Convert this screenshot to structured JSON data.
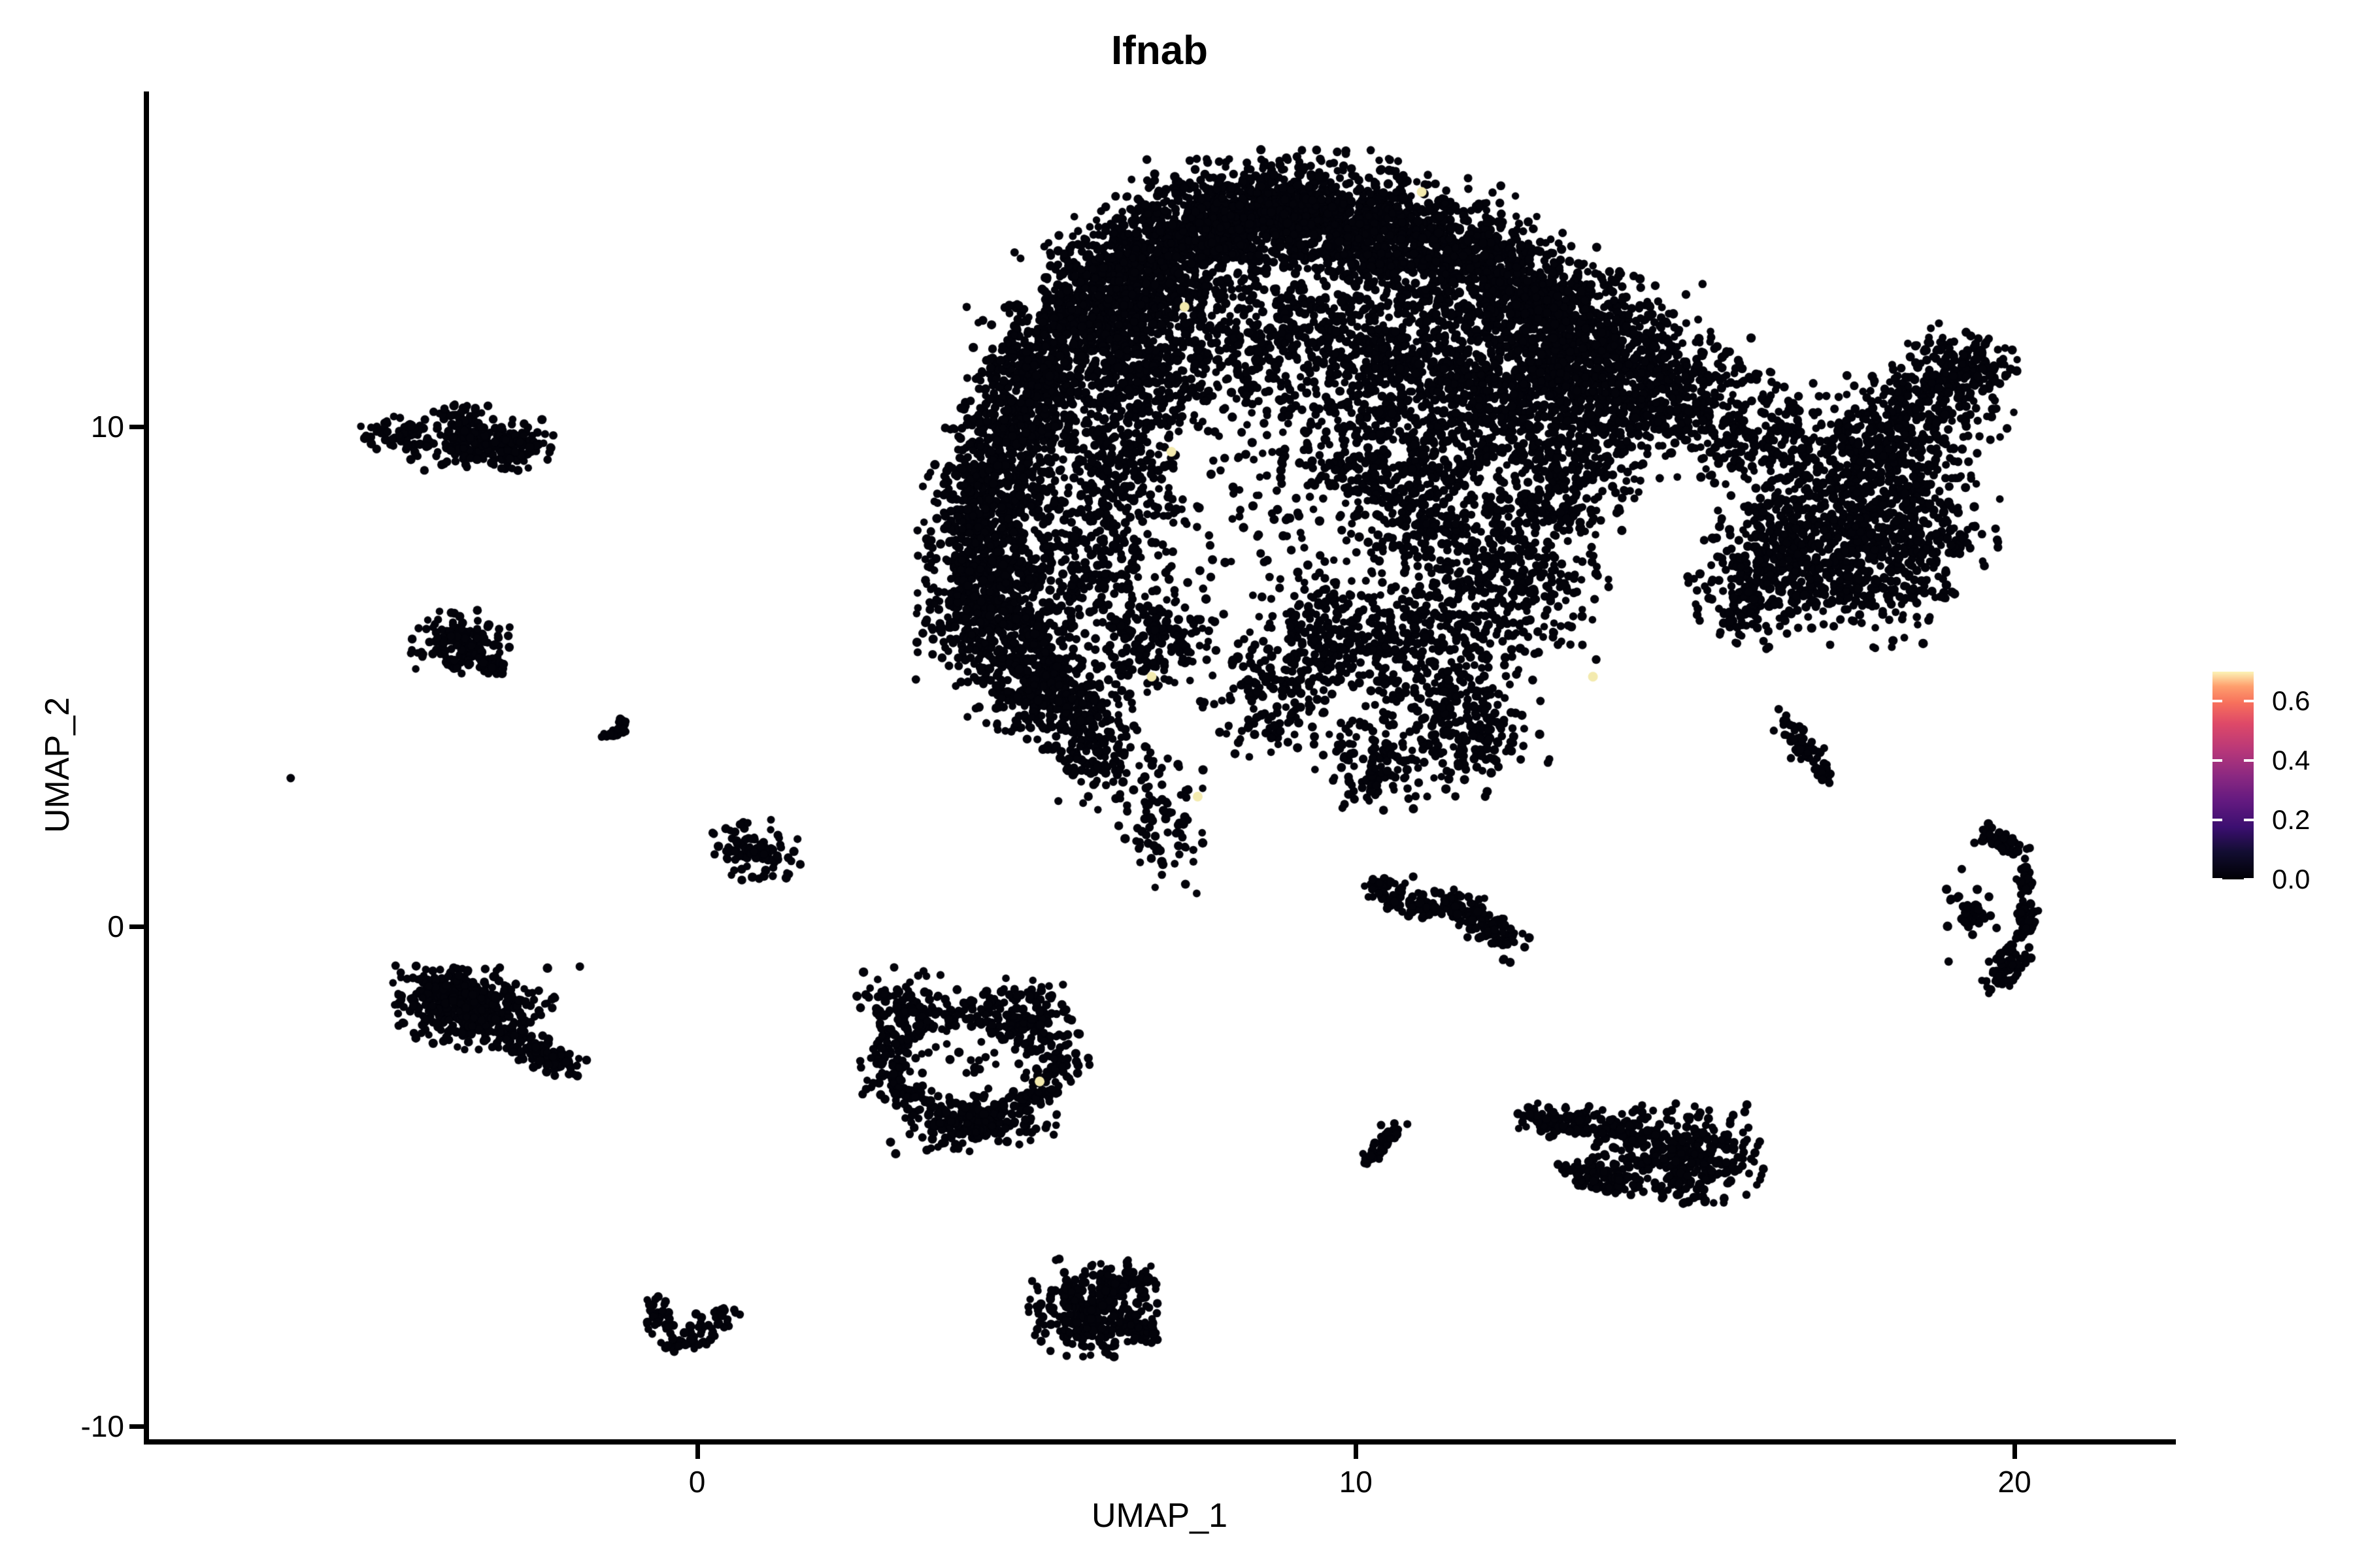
{
  "title": "Ifnab",
  "axes": {
    "x": {
      "label": "UMAP_1",
      "ticks": [
        "0",
        "10",
        "20"
      ],
      "tick_values": [
        0,
        10,
        20
      ],
      "range": [
        -8.4,
        22.45
      ]
    },
    "y": {
      "label": "UMAP_2",
      "ticks": [
        "10",
        "0",
        "-10"
      ],
      "tick_values": [
        10,
        0,
        -10
      ],
      "range": [
        -10.26,
        16.71
      ]
    }
  },
  "colorbar": {
    "tick_labels": [
      "0.6",
      "0.4",
      "0.2",
      "0.0"
    ],
    "tick_values": [
      0.6,
      0.4,
      0.2,
      0.0
    ],
    "vmax": 0.7,
    "stops": [
      {
        "at": 0.0,
        "color": "#000004"
      },
      {
        "at": 0.13,
        "color": "#120d31"
      },
      {
        "at": 0.25,
        "color": "#3b0f70"
      },
      {
        "at": 0.38,
        "color": "#641a80"
      },
      {
        "at": 0.5,
        "color": "#8c2981"
      },
      {
        "at": 0.62,
        "color": "#b73779"
      },
      {
        "at": 0.75,
        "color": "#de4968"
      },
      {
        "at": 0.85,
        "color": "#f7705c"
      },
      {
        "at": 0.93,
        "color": "#fe9f6d"
      },
      {
        "at": 1.0,
        "color": "#fcf4b6"
      }
    ]
  },
  "colors": {
    "dot": "#03030a",
    "highlight": "#f3eaae",
    "axis": "#000000",
    "background": "#ffffff"
  },
  "chart_data": {
    "type": "scatter",
    "title": "Ifnab",
    "xlabel": "UMAP_1",
    "ylabel": "UMAP_2",
    "xlim": [
      -8.4,
      22.45
    ],
    "ylim": [
      -10.26,
      16.71
    ],
    "grid": false,
    "legend_position": "right",
    "point_radius_px": 6.5,
    "gaussian_clusters": [
      [
        6.35,
        12.9,
        0.45,
        0.55,
        260
      ],
      [
        7.0,
        13.4,
        0.55,
        0.65,
        480
      ],
      [
        8.0,
        14.05,
        0.6,
        0.55,
        500
      ],
      [
        9.0,
        14.35,
        0.6,
        0.5,
        460
      ],
      [
        10.0,
        14.05,
        0.6,
        0.55,
        450
      ],
      [
        11.0,
        13.65,
        0.6,
        0.6,
        420
      ],
      [
        12.0,
        13.05,
        0.55,
        0.6,
        380
      ],
      [
        12.9,
        12.35,
        0.5,
        0.55,
        300
      ],
      [
        5.85,
        12.2,
        0.5,
        0.6,
        340
      ],
      [
        5.15,
        11.0,
        0.45,
        0.6,
        320
      ],
      [
        4.8,
        9.8,
        0.45,
        0.6,
        300
      ],
      [
        4.5,
        8.6,
        0.45,
        0.6,
        300
      ],
      [
        4.4,
        7.4,
        0.45,
        0.6,
        300
      ],
      [
        4.5,
        6.2,
        0.5,
        0.55,
        320
      ],
      [
        5.0,
        5.15,
        0.5,
        0.5,
        280
      ],
      [
        5.6,
        4.3,
        0.45,
        0.45,
        210
      ],
      [
        6.1,
        3.4,
        0.35,
        0.45,
        120
      ],
      [
        7.1,
        2.1,
        0.3,
        0.6,
        80
      ],
      [
        6.5,
        10.9,
        0.5,
        0.7,
        260
      ],
      [
        6.3,
        9.1,
        0.45,
        0.75,
        210
      ],
      [
        6.1,
        7.1,
        0.5,
        0.75,
        230
      ],
      [
        7.0,
        5.6,
        0.5,
        0.5,
        180
      ],
      [
        7.6,
        11.6,
        0.75,
        0.75,
        260
      ],
      [
        9.3,
        11.9,
        0.75,
        0.65,
        300
      ],
      [
        8.6,
        9.3,
        1.5,
        1.5,
        220
      ],
      [
        10.6,
        11.3,
        0.7,
        0.75,
        340
      ],
      [
        11.7,
        10.6,
        0.6,
        0.75,
        320
      ],
      [
        10.3,
        9.3,
        0.6,
        0.65,
        240
      ],
      [
        11.3,
        8.3,
        0.6,
        0.65,
        270
      ],
      [
        12.6,
        10.9,
        0.6,
        0.85,
        320
      ],
      [
        13.6,
        11.7,
        0.55,
        0.65,
        300
      ],
      [
        13.8,
        10.2,
        0.5,
        0.7,
        250
      ],
      [
        13.0,
        8.8,
        0.55,
        0.75,
        270
      ],
      [
        12.3,
        6.9,
        0.65,
        0.65,
        290
      ],
      [
        11.0,
        5.6,
        0.65,
        0.65,
        290
      ],
      [
        9.6,
        5.9,
        0.55,
        0.6,
        210
      ],
      [
        8.8,
        4.7,
        0.5,
        0.55,
        170
      ],
      [
        11.7,
        3.9,
        0.55,
        0.55,
        220
      ],
      [
        10.3,
        3.3,
        0.4,
        0.45,
        130
      ],
      [
        14.5,
        11.1,
        0.5,
        0.8,
        250
      ],
      [
        15.3,
        10.4,
        0.45,
        0.6,
        180
      ],
      [
        16.2,
        9.9,
        0.5,
        0.5,
        150
      ],
      [
        19.3,
        11.2,
        0.35,
        0.4,
        140
      ],
      [
        18.7,
        10.35,
        0.5,
        0.6,
        220
      ],
      [
        18.0,
        9.35,
        0.6,
        0.7,
        280
      ],
      [
        17.2,
        8.4,
        0.6,
        0.7,
        280
      ],
      [
        16.4,
        7.6,
        0.55,
        0.6,
        240
      ],
      [
        17.6,
        7.0,
        0.6,
        0.6,
        260
      ],
      [
        18.6,
        8.0,
        0.5,
        0.6,
        220
      ],
      [
        16.0,
        6.6,
        0.4,
        0.5,
        130
      ],
      [
        -3.15,
        9.65,
        0.5,
        0.22,
        230
      ],
      [
        -3.55,
        10.15,
        0.18,
        0.15,
        45
      ],
      [
        -4.45,
        9.85,
        0.28,
        0.15,
        70
      ],
      [
        -3.6,
        5.72,
        0.32,
        0.28,
        130
      ],
      [
        0.95,
        1.55,
        0.3,
        0.27,
        95
      ],
      [
        -3.35,
        -1.65,
        0.5,
        0.35,
        330
      ],
      [
        -3.9,
        -1.35,
        0.3,
        0.25,
        120
      ],
      [
        14.9,
        -4.55,
        0.55,
        0.42,
        380
      ],
      [
        6.0,
        -7.65,
        0.42,
        0.42,
        300
      ],
      [
        6.55,
        -7.05,
        0.18,
        0.15,
        50
      ],
      [
        6.75,
        -8.05,
        0.15,
        0.12,
        35
      ],
      [
        4.2,
        -3.95,
        0.55,
        0.25,
        150
      ],
      [
        3.05,
        -1.6,
        0.3,
        0.35,
        90
      ],
      [
        5.0,
        -1.75,
        0.35,
        0.3,
        100
      ],
      [
        19.35,
        0.3,
        0.16,
        0.2,
        40
      ]
    ],
    "line_clusters": [
      {
        "pts": [
          [
            -1.35,
            3.75
          ],
          [
            -1.1,
            4.1
          ]
        ],
        "spread": 0.07,
        "n": 22
      },
      {
        "pts": [
          [
            -3.3,
            5.35
          ],
          [
            -2.95,
            5.12
          ]
        ],
        "spread": 0.09,
        "n": 40
      },
      {
        "pts": [
          [
            -2.9,
            -2.2
          ],
          [
            -1.95,
            -2.8
          ]
        ],
        "spread": 0.14,
        "n": 110
      },
      {
        "pts": [
          [
            10.35,
            0.8
          ],
          [
            10.9,
            0.35
          ],
          [
            11.5,
            0.5
          ],
          [
            12.0,
            0.0
          ],
          [
            12.3,
            -0.45
          ]
        ],
        "spread": 0.16,
        "n": 215
      },
      {
        "pts": [
          [
            10.15,
            -4.75
          ],
          [
            10.65,
            -3.95
          ]
        ],
        "spread": 0.09,
        "n": 40
      },
      {
        "pts": [
          [
            12.65,
            -3.8
          ],
          [
            14.2,
            -4.15
          ]
        ],
        "spread": 0.17,
        "n": 135
      },
      {
        "pts": [
          [
            13.25,
            -4.95
          ],
          [
            14.05,
            -5.15
          ]
        ],
        "spread": 0.13,
        "n": 80
      },
      {
        "pts": [
          [
            -0.68,
            -7.55
          ],
          [
            -0.32,
            -8.5
          ]
        ],
        "spread": 0.12,
        "n": 45
      },
      {
        "pts": [
          [
            -0.32,
            -8.5
          ],
          [
            0.5,
            -7.72
          ]
        ],
        "spread": 0.13,
        "n": 55
      },
      {
        "pts": [
          [
            16.5,
            4.05
          ],
          [
            17.15,
            3.0
          ]
        ],
        "spread": 0.1,
        "n": 70
      },
      {
        "pts": [
          [
            19.55,
            1.85
          ],
          [
            20.1,
            1.55
          ]
        ],
        "spread": 0.1,
        "n": 50
      },
      {
        "pts": [
          [
            20.15,
            1.35
          ],
          [
            20.18,
            -0.25
          ]
        ],
        "spread": 0.08,
        "n": 70
      },
      {
        "pts": [
          [
            20.05,
            -0.45
          ],
          [
            19.7,
            -1.2
          ]
        ],
        "spread": 0.13,
        "n": 65
      }
    ],
    "ring_cluster": {
      "cx": 4.15,
      "cy": -2.75,
      "r": 1.15,
      "spread": 0.2,
      "n": 430,
      "inner_n": 22
    },
    "single_points": [
      [
        -6.17,
        2.97
      ],
      [
        -4.0,
        10.3
      ],
      [
        -4.7,
        9.9
      ],
      [
        -1.78,
        -0.8
      ],
      [
        16.42,
        4.35
      ],
      [
        19.2,
        1.15
      ],
      [
        19.0,
        -0.7
      ]
    ],
    "highlight_points": [
      [
        11.0,
        14.7
      ],
      [
        7.4,
        12.4
      ],
      [
        7.2,
        9.5
      ],
      [
        6.9,
        5.0
      ],
      [
        13.6,
        5.0
      ],
      [
        7.6,
        2.6
      ],
      [
        5.2,
        -3.1
      ]
    ],
    "highlight_value": 0.65
  }
}
